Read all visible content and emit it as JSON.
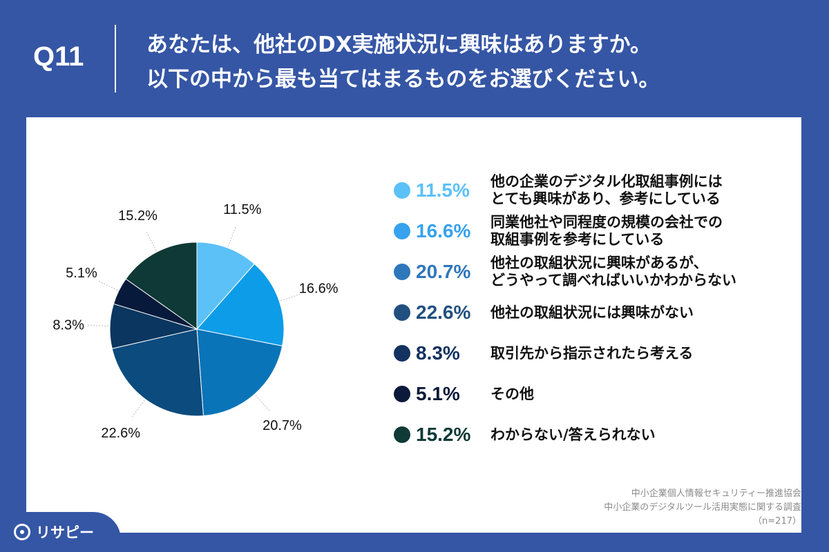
{
  "header": {
    "question_number": "Q11",
    "question_line1": "あなたは、他社のDX実施状況に興味はありますか。",
    "question_line2": "以下の中から最も当てはまるものをお選びください。"
  },
  "chart_data": {
    "type": "pie",
    "start_angle_deg": 0,
    "direction": "clockwise",
    "slices": [
      {
        "value": 11.5,
        "label": "11.5%",
        "color": "#5bc1f7"
      },
      {
        "value": 16.6,
        "label": "16.6%",
        "color": "#0d9ce8"
      },
      {
        "value": 20.7,
        "label": "20.7%",
        "color": "#0a74b8"
      },
      {
        "value": 22.6,
        "label": "22.6%",
        "color": "#0b4b7d"
      },
      {
        "value": 8.3,
        "label": "8.3%",
        "color": "#0a3660"
      },
      {
        "value": 5.1,
        "label": "5.1%",
        "color": "#071a3b"
      },
      {
        "value": 15.2,
        "label": "15.2%",
        "color": "#0e3936"
      }
    ]
  },
  "legend": [
    {
      "pct": "11.5%",
      "color": "#5bc1f7",
      "lines": [
        "他の企業のデジタル化取組事例には",
        "とても興味があり、参考にしている"
      ]
    },
    {
      "pct": "16.6%",
      "color": "#37a2ee",
      "lines": [
        "同業他社や同程度の規模の会社での",
        "取組事例を参考にしている"
      ]
    },
    {
      "pct": "20.7%",
      "color": "#2f77bb",
      "lines": [
        "他社の取組状況に興味があるが、",
        "どうやって調べればいいかわからない"
      ]
    },
    {
      "pct": "22.6%",
      "color": "#214f80",
      "lines": [
        "他社の取組状況には興味がない"
      ]
    },
    {
      "pct": "8.3%",
      "color": "#13325f",
      "lines": [
        "取引先から指示されたら考える"
      ]
    },
    {
      "pct": "5.1%",
      "color": "#0b1a3a",
      "lines": [
        "その他"
      ]
    },
    {
      "pct": "15.2%",
      "color": "#0f3a36",
      "lines": [
        "わからない/答えられない"
      ]
    }
  ],
  "source": {
    "line1": "中小企業個人情報セキュリティー推進協会",
    "line2": "中小企業のデジタルツール活用実態に関する調査",
    "line3": "（n=217）"
  },
  "logo": {
    "text": "リサピー"
  }
}
